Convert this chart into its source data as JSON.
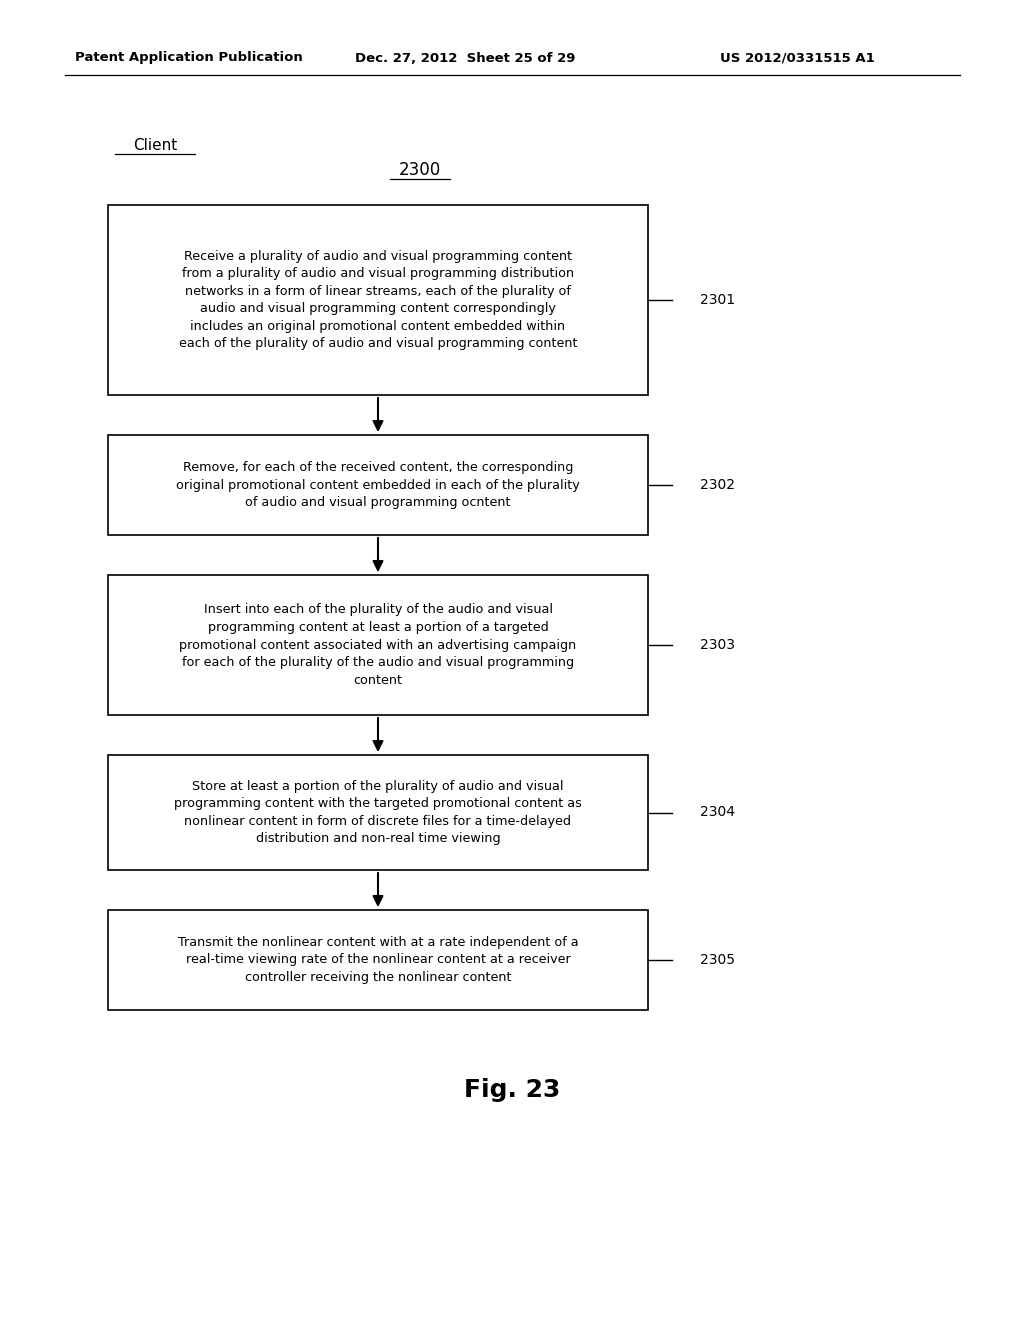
{
  "bg_color": "#ffffff",
  "header_left": "Patent Application Publication",
  "header_mid": "Dec. 27, 2012  Sheet 25 of 29",
  "header_right": "US 2012/0331515 A1",
  "client_label": "Client",
  "diagram_number": "2300",
  "figure_label": "Fig. 23",
  "boxes": [
    {
      "id": "2301",
      "label": "2301",
      "text": "Receive a plurality of audio and visual programming content\nfrom a plurality of audio and visual programming distribution\nnetworks in a form of linear streams, each of the plurality of\naudio and visual programming content correspondingly\nincludes an original promotional content embedded within\neach of the plurality of audio and visual programming content"
    },
    {
      "id": "2302",
      "label": "2302",
      "text": "Remove, for each of the received content, the corresponding\noriginal promotional content embedded in each of the plurality\nof audio and visual programming ocntent"
    },
    {
      "id": "2303",
      "label": "2303",
      "text": "Insert into each of the plurality of the audio and visual\nprogramming content at least a portion of a targeted\npromotional content associated with an advertising campaign\nfor each of the plurality of the audio and visual programming\ncontent"
    },
    {
      "id": "2304",
      "label": "2304",
      "text": "Store at least a portion of the plurality of audio and visual\nprogramming content with the targeted promotional content as\nnonlinear content in form of discrete files for a time-delayed\ndistribution and non-real time viewing"
    },
    {
      "id": "2305",
      "label": "2305",
      "text": "Transmit the nonlinear content with at a rate independent of a\nreal-time viewing rate of the nonlinear content at a receiver\ncontroller receiving the nonlinear content"
    }
  ]
}
